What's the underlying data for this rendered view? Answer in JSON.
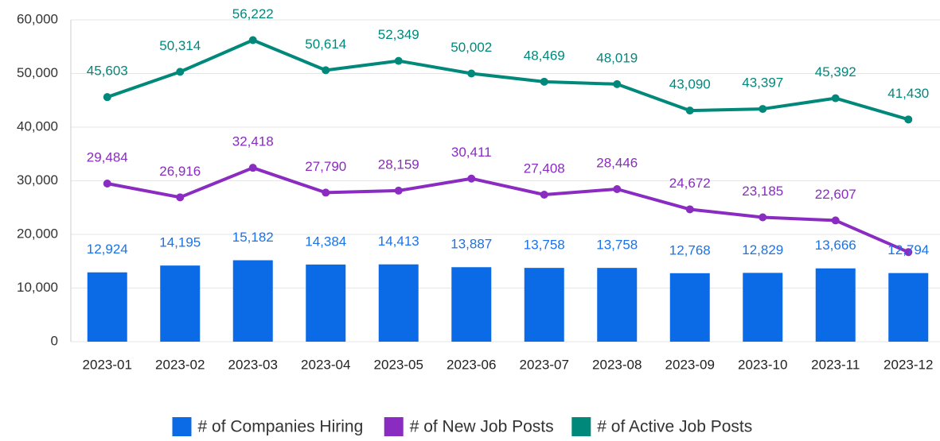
{
  "chart_data": {
    "type": "combo",
    "categories": [
      "2023-01",
      "2023-02",
      "2023-03",
      "2023-04",
      "2023-05",
      "2023-06",
      "2023-07",
      "2023-08",
      "2023-09",
      "2023-10",
      "2023-11",
      "2023-12"
    ],
    "series": [
      {
        "name": "# of Companies Hiring",
        "type": "bar",
        "color": "#0b6be6",
        "label_color": "#1a73e8",
        "values": [
          12924,
          14195,
          15182,
          14384,
          14413,
          13887,
          13758,
          13758,
          12768,
          12829,
          13666,
          12794
        ],
        "value_labels": [
          "12,924",
          "14,195",
          "15,182",
          "14,384",
          "14,413",
          "13,887",
          "13,758",
          "13,758",
          "12,768",
          "12,829",
          "13,666",
          "12,794"
        ]
      },
      {
        "name": "# of New Job Posts",
        "type": "line",
        "color": "#8a2bc2",
        "label_color": "#8a2bc2",
        "values": [
          29484,
          26916,
          32418,
          27790,
          28159,
          30411,
          27408,
          28446,
          24672,
          23185,
          22607,
          16700
        ],
        "value_labels": [
          "29,484",
          "26,916",
          "32,418",
          "27,790",
          "28,159",
          "30,411",
          "27,408",
          "28,446",
          "24,672",
          "23,185",
          "22,607",
          null
        ]
      },
      {
        "name": "# of Active Job Posts",
        "type": "line",
        "color": "#00897b",
        "label_color": "#00897b",
        "values": [
          45603,
          50314,
          56222,
          50614,
          52349,
          50002,
          48469,
          48019,
          43090,
          43397,
          45392,
          41430
        ],
        "value_labels": [
          "45,603",
          "50,314",
          "56,222",
          "50,614",
          "52,349",
          "50,002",
          "48,469",
          "48,019",
          "43,090",
          "43,397",
          "45,392",
          "41,430"
        ]
      }
    ],
    "ylim": [
      0,
      60000
    ],
    "yticks": [
      0,
      {
        "value": 10000,
        "label": "10,000"
      },
      {
        "value": 20000,
        "label": "20,000"
      },
      {
        "value": 30000,
        "label": "30,000"
      },
      {
        "value": 40000,
        "label": "40,000"
      },
      {
        "value": 50000,
        "label": "50,000"
      },
      {
        "value": 60000,
        "label": "60,000"
      }
    ],
    "grid": true,
    "legend": "bottom"
  }
}
